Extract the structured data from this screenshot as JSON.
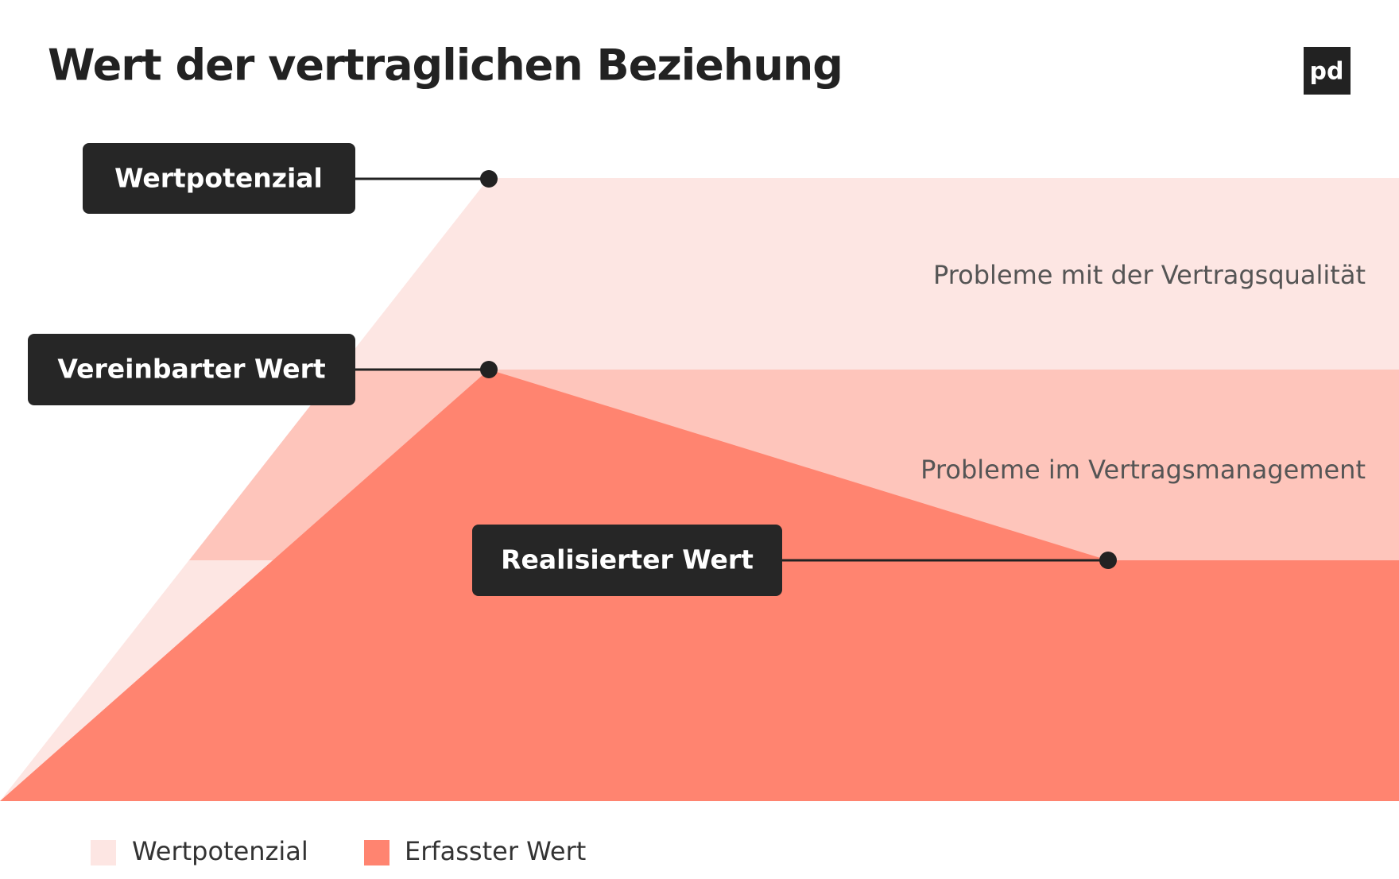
{
  "header": {
    "title": "Wert der vertraglichen Beziehung",
    "logo": "pd"
  },
  "labels": [
    "Wertpotenzial",
    "Vereinbarter Wert",
    "Realisierter Wert"
  ],
  "annotations": [
    "Probleme mit der Vertragsqualität",
    "Probleme im Vertragsmanagement"
  ],
  "legend": [
    "Wertpotenzial",
    "Erfasster Wert"
  ]
}
